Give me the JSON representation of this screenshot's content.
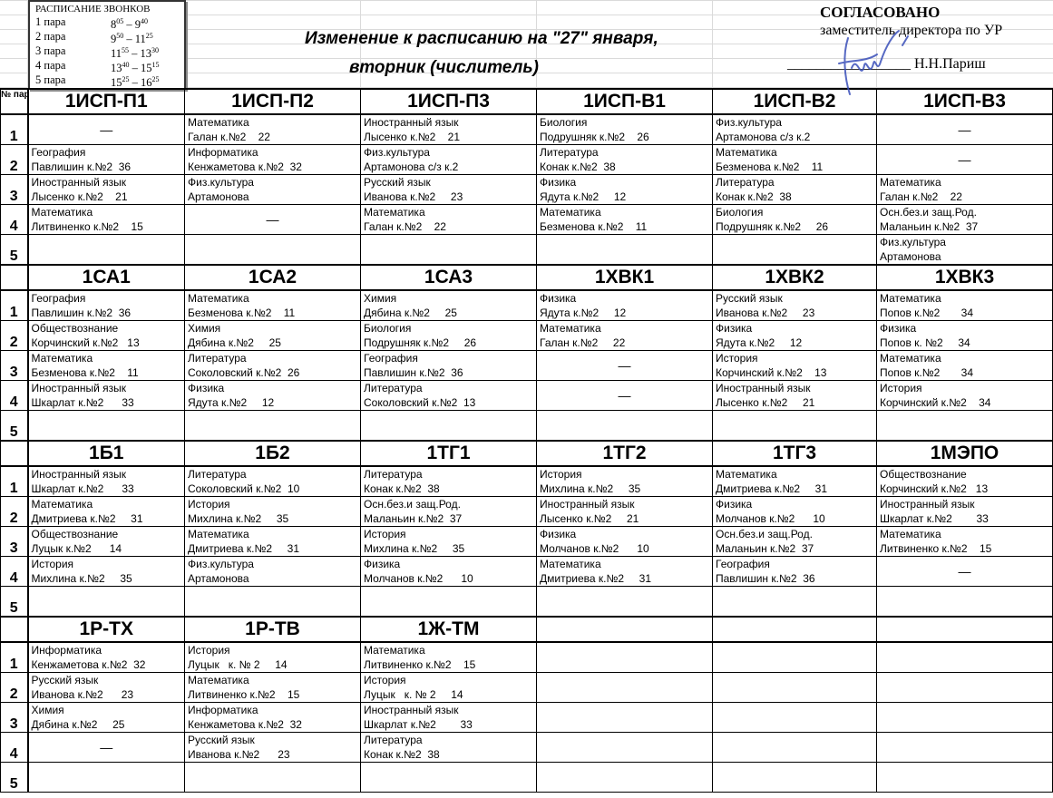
{
  "bells": {
    "title": "РАСПИСАНИЕ ЗВОНКОВ",
    "items": [
      {
        "label": "1 пара",
        "start_h": "8",
        "start_m": "05",
        "end_h": "9",
        "end_m": "40"
      },
      {
        "label": "2 пара",
        "start_h": "9",
        "start_m": "50",
        "end_h": "11",
        "end_m": "25"
      },
      {
        "label": "3 пара",
        "start_h": "11",
        "start_m": "55",
        "end_h": "13",
        "end_m": "30"
      },
      {
        "label": "4 пара",
        "start_h": "13",
        "start_m": "40",
        "end_h": "15",
        "end_m": "15"
      },
      {
        "label": "5 пара",
        "start_h": "15",
        "start_m": "25",
        "end_h": "16",
        "end_m": "25"
      }
    ]
  },
  "title": {
    "line1": "Изменение к расписанию на \"27\" января,",
    "line2": "вторник (числитель)"
  },
  "approval": {
    "heading": "СОГЛАСОВАНО",
    "position": "заместитель директора по УР",
    "signature_line": "_________________ Н.Н.Париш",
    "signature_color": "#3a4fb8"
  },
  "table": {
    "num_header": "№ пар",
    "row_numbers": [
      "1",
      "2",
      "3",
      "4",
      "5"
    ],
    "dash": "—",
    "blocks": [
      {
        "groups": [
          "1ИСП-П1",
          "1ИСП-П2",
          "1ИСП-П3",
          "1ИСП-В1",
          "1ИСП-В2",
          "1ИСП-В3"
        ],
        "rows": [
          [
            null,
            {
              "s": "Математика",
              "t": "Галан к.№2    22"
            },
            {
              "s": "Иностранный язык",
              "t": "Лысенко к.№2    21"
            },
            {
              "s": "Биология",
              "t": "Подрушняк к.№2    26"
            },
            {
              "s": "Физ.культура",
              "t": "Артамонова с/з к.2"
            },
            null
          ],
          [
            {
              "s": "География",
              "t": "Павлишин к.№2  36"
            },
            {
              "s": "Информатика",
              "t": "Кенжаметова к.№2  32"
            },
            {
              "s": "Физ.культура",
              "t": "Артамонова с/з к.2"
            },
            {
              "s": "Литература",
              "t": "Конак к.№2  38"
            },
            {
              "s": "Математика",
              "t": "Безменова к.№2    11"
            },
            null
          ],
          [
            {
              "s": "Иностранный язык",
              "t": "Лысенко к.№2    21"
            },
            {
              "s": "Физ.культура",
              "t": "Артамонова"
            },
            {
              "s": "Русский язык",
              "t": "Иванова к.№2     23"
            },
            {
              "s": "Физика",
              "t": "Ядута к.№2     12"
            },
            {
              "s": "Литература",
              "t": "Конак к.№2  38"
            },
            {
              "s": "Математика",
              "t": "Галан к.№2    22"
            }
          ],
          [
            {
              "s": "Математика",
              "t": "Литвиненко к.№2    15"
            },
            null,
            {
              "s": "Математика",
              "t": "Галан к.№2    22"
            },
            {
              "s": "Математика",
              "t": "Безменова к.№2    11"
            },
            {
              "s": "Биология",
              "t": "Подрушняк к.№2     26"
            },
            {
              "s": "Осн.без.и защ.Род.",
              "t": "Маланьин к.№2  37"
            }
          ],
          [
            "",
            "",
            "",
            "",
            "",
            {
              "s": "Физ.культура",
              "t": "Артамонова"
            }
          ]
        ]
      },
      {
        "groups": [
          "1СА1",
          "1СА2",
          "1СА3",
          "1ХВК1",
          "1ХВК2",
          "1ХВК3"
        ],
        "rows": [
          [
            {
              "s": "География",
              "t": "Павлишин к.№2  36"
            },
            {
              "s": "Математика",
              "t": "Безменова к.№2    11"
            },
            {
              "s": "Химия",
              "t": "Дябина к.№2     25"
            },
            {
              "s": "Физика",
              "t": "Ядута к.№2     12"
            },
            {
              "s": "Русский язык",
              "t": "Иванова к.№2     23"
            },
            {
              "s": "Математика",
              "t": "Попов к.№2       34"
            }
          ],
          [
            {
              "s": "Обществознание",
              "t": "Корчинский к.№2   13"
            },
            {
              "s": "Химия",
              "t": "Дябина к.№2     25"
            },
            {
              "s": "Биология",
              "t": "Подрушняк к.№2     26"
            },
            {
              "s": "Математика",
              "t": "Галан к.№2     22"
            },
            {
              "s": "Физика",
              "t": "Ядута к.№2     12"
            },
            {
              "s": "Физика",
              "t": "Попов к. №2     34"
            }
          ],
          [
            {
              "s": "Математика",
              "t": "Безменова к.№2    11"
            },
            {
              "s": "Литература",
              "t": "Соколовский к.№2  26"
            },
            {
              "s": "География",
              "t": "Павлишин к.№2  36"
            },
            null,
            {
              "s": "История",
              "t": "Корчинский к.№2    13"
            },
            {
              "s": "Математика",
              "t": "Попов к.№2       34"
            }
          ],
          [
            {
              "s": "Иностранный язык",
              "t": "Шкарлат к.№2      33"
            },
            {
              "s": "Физика",
              "t": "Ядута к.№2     12"
            },
            {
              "s": "Литература",
              "t": "Соколовский к.№2  13"
            },
            null,
            {
              "s": "Иностранный язык",
              "t": "Лысенко к.№2     21"
            },
            {
              "s": "История",
              "t": "Корчинский к.№2    34"
            }
          ],
          [
            "",
            "",
            "",
            "",
            "",
            ""
          ]
        ]
      },
      {
        "groups": [
          "1Б1",
          "1Б2",
          "1ТГ1",
          "1ТГ2",
          "1ТГ3",
          "1МЭПО"
        ],
        "rows": [
          [
            {
              "s": "Иностранный язык",
              "t": "Шкарлат к.№2      33"
            },
            {
              "s": "Литература",
              "t": "Соколовский к.№2  10"
            },
            {
              "s": "Литература",
              "t": "Конак к.№2  38"
            },
            {
              "s": "История",
              "t": "Михлина к.№2     35"
            },
            {
              "s": "Математика",
              "t": "Дмитриева к.№2     31"
            },
            {
              "s": "Обществознание",
              "t": "Корчинский к.№2   13"
            }
          ],
          [
            {
              "s": "Математика",
              "t": "Дмитриева к.№2     31"
            },
            {
              "s": "История",
              "t": "Михлина к.№2     35"
            },
            {
              "s": "Осн.без.и защ.Род.",
              "t": "Маланьин к.№2  37"
            },
            {
              "s": "Иностранный язык",
              "t": "Лысенко к.№2     21"
            },
            {
              "s": "Физика",
              "t": "Молчанов к.№2      10"
            },
            {
              "s": "Иностранный язык",
              "t": "Шкарлат к.№2        33"
            }
          ],
          [
            {
              "s": "Обществознание",
              "t": "Луцык к.№2      14"
            },
            {
              "s": "Математика",
              "t": "Дмитриева к.№2     31"
            },
            {
              "s": "История",
              "t": "Михлина к.№2     35"
            },
            {
              "s": "Физика",
              "t": "Молчанов к.№2      10"
            },
            {
              "s": "Осн.без.и защ.Род.",
              "t": "Маланьин к.№2  37"
            },
            {
              "s": "Математика",
              "t": "Литвиненко к.№2    15"
            }
          ],
          [
            {
              "s": "История",
              "t": "Михлина к.№2     35"
            },
            {
              "s": "Физ.культура",
              "t": "Артамонова"
            },
            {
              "s": "Физика",
              "t": "Молчанов к.№2      10"
            },
            {
              "s": "Математика",
              "t": "Дмитриева к.№2     31"
            },
            {
              "s": "География",
              "t": "Павлишин к.№2  36"
            },
            null
          ],
          [
            "",
            "",
            "",
            "",
            "",
            ""
          ]
        ]
      },
      {
        "groups": [
          "1Р-ТХ",
          "1Р-ТВ",
          "1Ж-ТМ",
          "",
          "",
          ""
        ],
        "rows": [
          [
            {
              "s": "Информатика",
              "t": "Кенжаметова к.№2  32"
            },
            {
              "s": "История",
              "t": "Луцык   к. № 2     14"
            },
            {
              "s": "Математика",
              "t": "Литвиненко к.№2    15"
            },
            "",
            "",
            ""
          ],
          [
            {
              "s": "Русский язык",
              "t": "Иванова к.№2      23"
            },
            {
              "s": "Математика",
              "t": "Литвиненко к.№2    15"
            },
            {
              "s": "История",
              "t": "Луцык   к. № 2     14"
            },
            "",
            "",
            ""
          ],
          [
            {
              "s": "Химия",
              "t": "Дябина к.№2     25"
            },
            {
              "s": "Информатика",
              "t": "Кенжаметова к.№2  32"
            },
            {
              "s": "Иностранный язык",
              "t": "Шкарлат к.№2        33"
            },
            "",
            "",
            ""
          ],
          [
            null,
            {
              "s": "Русский язык",
              "t": "Иванова к.№2      23"
            },
            {
              "s": "Литература",
              "t": "Конак к.№2  38"
            },
            "",
            "",
            ""
          ],
          [
            "",
            "",
            "",
            "",
            "",
            ""
          ]
        ]
      }
    ]
  }
}
